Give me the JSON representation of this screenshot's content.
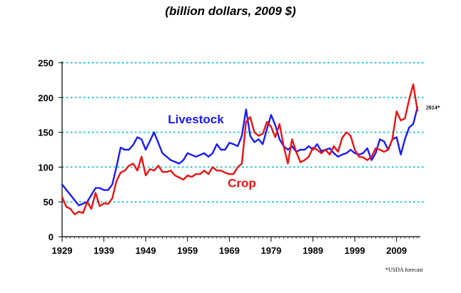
{
  "chart_data": {
    "type": "line",
    "title": "(billion dollars, 2009 $)",
    "xlim": [
      1929,
      2014
    ],
    "ylim": [
      0,
      250
    ],
    "x_ticks": [
      1929,
      1939,
      1949,
      1959,
      1969,
      1979,
      1989,
      1999,
      2009
    ],
    "y_ticks": [
      0,
      50,
      100,
      150,
      200,
      250
    ],
    "grid": "horizontal dotted",
    "series": [
      {
        "name": "Livestock",
        "color": "#1a1aff",
        "x": [
          1929,
          1931,
          1933,
          1935,
          1936,
          1937,
          1938,
          1939,
          1940,
          1941,
          1942,
          1943,
          1944,
          1945,
          1946,
          1947,
          1948,
          1949,
          1951,
          1953,
          1955,
          1957,
          1958,
          1959,
          1961,
          1963,
          1964,
          1965,
          1966,
          1967,
          1968,
          1969,
          1970,
          1971,
          1972,
          1973,
          1974,
          1975,
          1976,
          1977,
          1978,
          1979,
          1980,
          1981,
          1982,
          1983,
          1984,
          1985,
          1986,
          1987,
          1988,
          1989,
          1990,
          1991,
          1992,
          1993,
          1994,
          1995,
          1996,
          1997,
          1998,
          1999,
          2000,
          2001,
          2002,
          2003,
          2004,
          2005,
          2006,
          2007,
          2008,
          2009,
          2010,
          2011,
          2012,
          2013,
          2014
        ],
        "values": [
          75,
          60,
          45,
          50,
          60,
          70,
          70,
          67,
          67,
          75,
          100,
          128,
          125,
          125,
          132,
          143,
          140,
          125,
          150,
          120,
          110,
          105,
          110,
          120,
          115,
          120,
          115,
          120,
          133,
          125,
          125,
          135,
          133,
          130,
          145,
          183,
          145,
          136,
          140,
          133,
          155,
          175,
          160,
          140,
          130,
          125,
          130,
          122,
          125,
          125,
          130,
          125,
          133,
          123,
          125,
          127,
          120,
          115,
          118,
          120,
          125,
          120,
          118,
          120,
          127,
          110,
          120,
          140,
          137,
          125,
          140,
          143,
          118,
          140,
          157,
          162,
          186
        ]
      },
      {
        "name": "Crop",
        "color": "#ee1111",
        "x": [
          1929,
          1930,
          1931,
          1932,
          1933,
          1934,
          1935,
          1936,
          1937,
          1938,
          1939,
          1940,
          1941,
          1942,
          1943,
          1944,
          1945,
          1946,
          1947,
          1948,
          1949,
          1950,
          1951,
          1952,
          1953,
          1954,
          1955,
          1956,
          1957,
          1958,
          1959,
          1960,
          1961,
          1962,
          1963,
          1964,
          1965,
          1966,
          1967,
          1968,
          1969,
          1970,
          1971,
          1972,
          1973,
          1974,
          1975,
          1976,
          1977,
          1978,
          1979,
          1980,
          1981,
          1982,
          1983,
          1984,
          1985,
          1986,
          1987,
          1988,
          1989,
          1990,
          1991,
          1992,
          1993,
          1994,
          1995,
          1996,
          1997,
          1998,
          1999,
          2000,
          2001,
          2002,
          2003,
          2004,
          2005,
          2006,
          2007,
          2008,
          2009,
          2010,
          2011,
          2012,
          2013,
          2014
        ],
        "values": [
          57,
          43,
          40,
          32,
          36,
          34,
          50,
          40,
          63,
          44,
          48,
          47,
          55,
          80,
          92,
          95,
          102,
          105,
          95,
          115,
          88,
          97,
          95,
          102,
          93,
          93,
          95,
          88,
          85,
          82,
          88,
          86,
          90,
          90,
          95,
          90,
          100,
          95,
          95,
          92,
          90,
          90,
          100,
          105,
          165,
          172,
          150,
          145,
          148,
          165,
          158,
          143,
          162,
          130,
          105,
          140,
          122,
          107,
          110,
          115,
          128,
          125,
          120,
          125,
          118,
          130,
          122,
          142,
          150,
          145,
          125,
          115,
          114,
          110,
          115,
          127,
          125,
          122,
          125,
          140,
          180,
          167,
          170,
          197,
          219,
          181
        ]
      }
    ],
    "annotations": [
      {
        "text": "Livestock",
        "x": 1961,
        "y": 163,
        "color": "#1a1aff"
      },
      {
        "text": "Crop",
        "x": 1972,
        "y": 71,
        "color": "#ee1111"
      },
      {
        "text": "2014*",
        "x": 2016,
        "y": 186,
        "color": "#000000"
      }
    ],
    "footnote": "*USDA forecast"
  }
}
